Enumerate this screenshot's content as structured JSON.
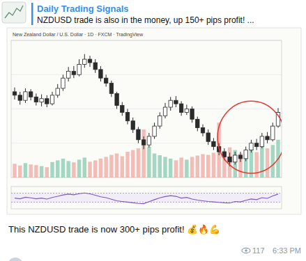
{
  "header": {
    "channel": "Daily Trading Signals",
    "preview": "NZDUSD trade is also in the money, up 150+ pips profit! ..."
  },
  "chart_data": [
    {
      "type": "candlestick",
      "title": "New Zealand Dollar / U.S. Dollar · 1D · FXCM · TradingView",
      "open": [
        0.63,
        0.628,
        0.625,
        0.63,
        0.627,
        0.624,
        0.626,
        0.623,
        0.628,
        0.632,
        0.638,
        0.642,
        0.64,
        0.646,
        0.649,
        0.647,
        0.643,
        0.638,
        0.635,
        0.629,
        0.622,
        0.618,
        0.613,
        0.608,
        0.602,
        0.599,
        0.604,
        0.61,
        0.616,
        0.621,
        0.625,
        0.623,
        0.618,
        0.62,
        0.614,
        0.609,
        0.606,
        0.601,
        0.598,
        0.595,
        0.592,
        0.589,
        0.593,
        0.591,
        0.596,
        0.6,
        0.598,
        0.604,
        0.602,
        0.61
      ],
      "high": [
        0.6325,
        0.63,
        0.632,
        0.6315,
        0.629,
        0.6285,
        0.628,
        0.63,
        0.6345,
        0.64,
        0.6445,
        0.645,
        0.649,
        0.652,
        0.651,
        0.649,
        0.645,
        0.64,
        0.6365,
        0.63,
        0.624,
        0.62,
        0.615,
        0.6095,
        0.604,
        0.606,
        0.612,
        0.618,
        0.6235,
        0.627,
        0.6275,
        0.6245,
        0.6225,
        0.6215,
        0.6155,
        0.611,
        0.608,
        0.603,
        0.6,
        0.597,
        0.5945,
        0.595,
        0.595,
        0.598,
        0.602,
        0.6025,
        0.606,
        0.6065,
        0.612,
        0.6205
      ],
      "low": [
        0.6255,
        0.6225,
        0.6235,
        0.625,
        0.622,
        0.6215,
        0.621,
        0.622,
        0.6265,
        0.6305,
        0.636,
        0.638,
        0.639,
        0.644,
        0.6445,
        0.641,
        0.636,
        0.633,
        0.627,
        0.62,
        0.616,
        0.611,
        0.606,
        0.6,
        0.5965,
        0.5975,
        0.6025,
        0.6085,
        0.6145,
        0.619,
        0.621,
        0.616,
        0.6165,
        0.612,
        0.607,
        0.604,
        0.599,
        0.596,
        0.593,
        0.59,
        0.5865,
        0.5875,
        0.589,
        0.5895,
        0.5945,
        0.596,
        0.597,
        0.6,
        0.601,
        0.609
      ],
      "close": [
        0.628,
        0.625,
        0.63,
        0.627,
        0.624,
        0.626,
        0.623,
        0.628,
        0.632,
        0.638,
        0.642,
        0.64,
        0.646,
        0.649,
        0.647,
        0.643,
        0.638,
        0.635,
        0.629,
        0.622,
        0.618,
        0.613,
        0.608,
        0.602,
        0.599,
        0.604,
        0.61,
        0.616,
        0.621,
        0.625,
        0.623,
        0.618,
        0.62,
        0.614,
        0.609,
        0.606,
        0.601,
        0.598,
        0.595,
        0.592,
        0.589,
        0.593,
        0.591,
        0.596,
        0.6,
        0.598,
        0.604,
        0.602,
        0.61,
        0.618
      ],
      "volume": [
        40,
        35,
        42,
        38,
        36,
        33,
        30,
        45,
        50,
        55,
        48,
        44,
        52,
        58,
        46,
        50,
        55,
        60,
        66,
        70,
        62,
        75,
        80,
        85,
        140,
        90,
        70,
        65,
        60,
        55,
        50,
        58,
        52,
        60,
        64,
        68,
        66,
        72,
        160,
        78,
        88,
        80,
        70,
        75,
        82,
        74,
        90,
        85,
        95,
        110
      ],
      "color": "#2b2b2b",
      "ylim": [
        0.58,
        0.66
      ],
      "yticks": [
        0.58,
        0.6,
        0.62,
        0.64,
        0.66
      ],
      "y2lim": [
        0,
        400
      ],
      "grid": true,
      "tick_labels": false
    },
    {
      "type": "line",
      "values": [
        48,
        45,
        52,
        49,
        45,
        48,
        44,
        51,
        56,
        62,
        66,
        63,
        68,
        71,
        67,
        61,
        54,
        50,
        43,
        36,
        33,
        30,
        27,
        24,
        23,
        32,
        41,
        49,
        55,
        59,
        56,
        48,
        51,
        44,
        39,
        36,
        33,
        31,
        29,
        27,
        26,
        33,
        31,
        38,
        44,
        41,
        50,
        47,
        58,
        66
      ],
      "color": "#7e57c2",
      "ylim": [
        0,
        100
      ],
      "yticks": [
        30,
        70
      ],
      "grid": true,
      "tick_labels": false
    }
  ],
  "message": {
    "text": "This NZDUSD trade is now 300+ pips profit! 💰🔥💪",
    "views": 117,
    "time": "6:33 PM"
  }
}
